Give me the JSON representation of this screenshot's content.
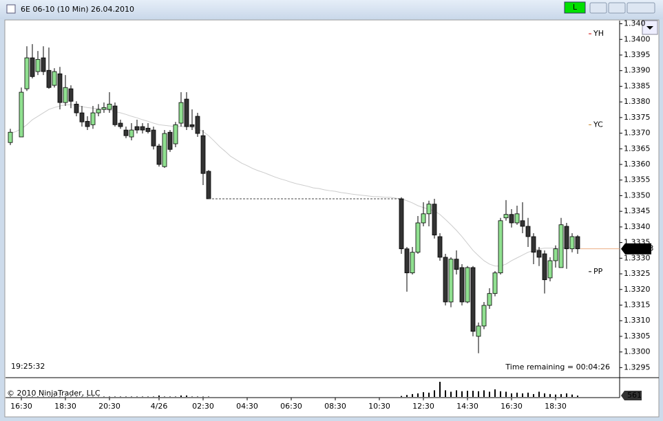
{
  "window": {
    "title": "6E 06-10 (10 Min)  26.04.2010",
    "button": "L"
  },
  "chart_data": {
    "type": "candlestick",
    "clock": "19:25:32",
    "time_remaining": "Time remaining = 00:04:26",
    "copyright": "© 2010 NinjaTrader, LLC",
    "categories": [
      null,
      null,
      "16:30",
      null,
      null,
      null,
      null,
      null,
      null,
      null,
      "18:30",
      null,
      null,
      null,
      null,
      null,
      null,
      null,
      "20:30",
      null,
      null,
      null,
      null,
      null,
      null,
      null,
      null,
      "4/26",
      null,
      null,
      null,
      null,
      null,
      null,
      null,
      "02:30",
      null,
      null,
      null,
      null,
      null,
      null,
      null,
      "04:30",
      null,
      null,
      null,
      null,
      null,
      null,
      null,
      "06:30",
      null,
      null,
      null,
      null,
      null,
      null,
      null,
      "08:30",
      null,
      null,
      null,
      null,
      null,
      null,
      null,
      "10:30",
      null,
      null,
      null,
      null,
      null,
      null,
      null,
      "12:30",
      null,
      null,
      null,
      null,
      null,
      null,
      null,
      "14:30",
      null,
      null,
      null,
      null,
      null,
      null,
      null,
      "16:30",
      null,
      null,
      null,
      null,
      null,
      null,
      null,
      "18:30",
      null,
      null,
      null,
      null
    ],
    "open": [
      1.3367,
      null,
      1.33688,
      1.33842,
      1.33941,
      1.33897,
      1.33941,
      1.33901,
      1.33853,
      1.3389,
      1.33798,
      1.33842,
      1.33793,
      1.33765,
      1.33738,
      1.33727,
      1.33765,
      1.33776,
      1.33776,
      1.33787,
      1.33732,
      1.3371,
      1.33688,
      1.33721,
      1.33721,
      1.33716,
      1.3371,
      1.33659,
      1.33593,
      1.33703,
      1.33666,
      1.33732,
      1.33809,
      1.33727,
      1.33754,
      1.33692,
      1.33578,
      null,
      null,
      null,
      null,
      null,
      null,
      null,
      null,
      null,
      null,
      null,
      null,
      null,
      null,
      null,
      null,
      null,
      null,
      null,
      null,
      null,
      null,
      null,
      null,
      null,
      null,
      null,
      null,
      null,
      null,
      null,
      null,
      null,
      null,
      1.3349,
      1.3333,
      1.33253,
      1.33319,
      1.33413,
      1.33442,
      1.33473,
      1.33369,
      1.33303,
      1.3316,
      1.33297,
      1.3327,
      1.3316,
      1.3327,
      1.3305,
      1.33083,
      1.33149,
      1.33187,
      1.33253,
      1.33429,
      1.3344,
      1.33413,
      1.3342,
      1.33402,
      1.33369,
      1.33325,
      1.33314,
      1.33237,
      1.33292,
      1.3327,
      1.33402,
      1.3333,
      1.33369
    ],
    "high": [
      1.33714,
      null,
      1.33846,
      1.33978,
      1.33985,
      1.33963,
      1.33978,
      1.33974,
      1.33908,
      1.33912,
      1.33886,
      1.33853,
      1.33802,
      1.33787,
      1.33754,
      1.33787,
      1.33793,
      1.33798,
      1.33831,
      1.33798,
      1.33743,
      1.33721,
      1.33732,
      1.33743,
      1.33732,
      1.33732,
      1.33721,
      1.33666,
      1.3371,
      1.3371,
      1.33736,
      1.33831,
      1.33831,
      1.33776,
      1.33765,
      1.3371,
      1.33582,
      null,
      null,
      null,
      null,
      null,
      null,
      null,
      null,
      null,
      null,
      null,
      null,
      null,
      null,
      null,
      null,
      null,
      null,
      null,
      null,
      null,
      null,
      null,
      null,
      null,
      null,
      null,
      null,
      null,
      null,
      null,
      null,
      null,
      null,
      1.33495,
      1.33336,
      1.33336,
      1.33435,
      1.33479,
      1.33484,
      1.3349,
      1.3338,
      1.33314,
      1.33303,
      1.33325,
      1.33281,
      1.33275,
      1.33275,
      1.33094,
      1.3316,
      1.33204,
      1.33259,
      1.33429,
      1.33486,
      1.33457,
      1.33468,
      1.33479,
      1.33429,
      1.3338,
      1.33336,
      1.33325,
      1.33303,
      1.33341,
      1.33429,
      1.33413,
      1.3338,
      1.33374
    ],
    "low": [
      1.33662,
      null,
      1.33688,
      1.33835,
      1.33875,
      1.33886,
      1.33886,
      1.33842,
      1.33846,
      1.33776,
      1.33787,
      1.3378,
      1.33754,
      1.33721,
      1.3371,
      1.33714,
      1.33754,
      1.33765,
      1.33765,
      1.33721,
      1.33714,
      1.33684,
      1.33677,
      1.33699,
      1.33699,
      1.33699,
      1.33648,
      1.33593,
      1.33589,
      1.3364,
      1.33655,
      1.33721,
      1.3371,
      1.3371,
      1.33688,
      1.33534,
      1.3349,
      null,
      null,
      null,
      null,
      null,
      null,
      null,
      null,
      null,
      null,
      null,
      null,
      null,
      null,
      null,
      null,
      null,
      null,
      null,
      null,
      null,
      null,
      null,
      null,
      null,
      null,
      null,
      null,
      null,
      null,
      null,
      null,
      null,
      null,
      1.33314,
      1.33193,
      1.33248,
      1.33314,
      1.33402,
      1.33402,
      1.33363,
      1.33292,
      1.33149,
      1.33143,
      1.33248,
      1.33149,
      1.33156,
      1.3305,
      1.32996,
      1.33073,
      1.33138,
      1.33178,
      1.33248,
      1.3342,
      1.33398,
      1.33407,
      1.3338,
      1.33336,
      1.33281,
      1.33275,
      1.33187,
      1.33226,
      1.3327,
      1.3327,
      1.33266,
      1.33319,
      1.33314
    ],
    "close": [
      1.33703,
      null,
      1.33831,
      1.33941,
      1.33881,
      1.33936,
      1.33897,
      1.33846,
      1.33897,
      1.33798,
      1.33846,
      1.33802,
      1.33765,
      1.33736,
      1.33721,
      1.33765,
      1.33776,
      1.33782,
      1.33793,
      1.33727,
      1.33721,
      1.33692,
      1.3371,
      1.3371,
      1.3371,
      1.33705,
      1.33659,
      1.336,
      1.33699,
      1.33648,
      1.33727,
      1.33798,
      1.33721,
      1.33721,
      1.33699,
      1.33571,
      1.3349,
      null,
      null,
      null,
      null,
      null,
      null,
      null,
      null,
      null,
      null,
      null,
      null,
      null,
      null,
      null,
      null,
      null,
      null,
      null,
      null,
      null,
      null,
      null,
      null,
      null,
      null,
      null,
      null,
      null,
      null,
      null,
      null,
      null,
      null,
      1.3333,
      1.33253,
      1.33319,
      1.33413,
      1.33442,
      1.33473,
      1.33374,
      1.33303,
      1.3316,
      1.33297,
      1.33264,
      1.3316,
      1.3327,
      1.33066,
      1.33083,
      1.33149,
      1.33187,
      1.33253,
      1.3342,
      1.3344,
      1.33413,
      1.33442,
      1.33402,
      1.33369,
      1.33319,
      1.33303,
      1.33231,
      1.33292,
      1.3333,
      1.33407,
      1.3333,
      1.33369,
      1.3333
    ],
    "up_color": "#90e090",
    "down_color": "#333333",
    "ma": {
      "color": "#cccccc",
      "values": [
        1.33699,
        1.33705,
        1.33714,
        1.33727,
        1.33743,
        1.33754,
        1.33765,
        1.33776,
        1.33782,
        1.33787,
        1.33791,
        1.33791,
        1.33789,
        1.33785,
        1.33782,
        1.3378,
        1.33778,
        1.33776,
        1.33774,
        1.33769,
        1.33765,
        1.3376,
        1.33754,
        1.33749,
        1.33743,
        1.33738,
        1.33732,
        1.33727,
        1.33725,
        1.33723,
        1.33721,
        1.33721,
        1.33721,
        1.33719,
        1.33714,
        1.33705,
        1.33692,
        1.33675,
        1.33657,
        1.33642,
        1.33626,
        1.33615,
        1.33604,
        1.33596,
        1.33587,
        1.3358,
        1.33574,
        1.33567,
        1.3356,
        1.33554,
        1.33549,
        1.33543,
        1.33538,
        1.33534,
        1.3353,
        1.33525,
        1.33523,
        1.33519,
        1.33516,
        1.33514,
        1.3351,
        1.33508,
        1.33505,
        1.33503,
        1.33501,
        1.33499,
        1.33497,
        1.33497,
        1.33495,
        1.33495,
        1.33492,
        1.3349,
        1.33484,
        1.33477,
        1.33468,
        1.33462,
        1.33457,
        1.33451,
        1.3344,
        1.33424,
        1.33407,
        1.33389,
        1.33369,
        1.33347,
        1.33325,
        1.33308,
        1.33292,
        1.33281,
        1.33275,
        1.33275,
        1.33281,
        1.33292,
        1.33301,
        1.3331,
        1.33319,
        1.33325,
        1.3333,
        1.33332,
        1.33332,
        1.33332,
        1.33332,
        1.33334,
        1.33336,
        1.33336
      ]
    },
    "volume": {
      "color": "#000000",
      "ylim": [
        0,
        7000
      ],
      "values": [
        150,
        null,
        150,
        150,
        150,
        150,
        150,
        150,
        150,
        150,
        150,
        150,
        150,
        150,
        150,
        150,
        150,
        150,
        150,
        150,
        150,
        150,
        150,
        150,
        150,
        150,
        150,
        600,
        150,
        150,
        150,
        600,
        600,
        150,
        150,
        150,
        150,
        null,
        null,
        null,
        null,
        null,
        null,
        null,
        null,
        null,
        null,
        null,
        null,
        null,
        null,
        null,
        null,
        null,
        null,
        null,
        null,
        null,
        null,
        null,
        null,
        null,
        null,
        null,
        null,
        null,
        null,
        null,
        null,
        null,
        null,
        400,
        800,
        1200,
        1500,
        2000,
        1800,
        2800,
        6400,
        2800,
        2200,
        2800,
        2400,
        2600,
        2600,
        2400,
        2800,
        2200,
        3200,
        2400,
        2200,
        1500,
        1800,
        1500,
        1800,
        1200,
        2200,
        1500,
        1200,
        1000,
        1200,
        1500,
        1000,
        561
      ]
    },
    "levels": [
      {
        "label": "YH",
        "value": 1.34018,
        "color": "#cc0000"
      },
      {
        "label": "YC",
        "value": 1.33727,
        "color": "#c88020"
      },
      {
        "label": "PP",
        "value": 1.33257,
        "color": "#000000"
      }
    ],
    "ylim": [
      1.3292,
      1.3406
    ],
    "yticks": [
      1.3295,
      {
        "value": 1.33,
        "label": "1.3300"
      },
      1.3305,
      {
        "value": 1.331,
        "label": "1.3310"
      },
      1.3315,
      {
        "value": 1.332,
        "label": "1.3320"
      },
      1.3325,
      {
        "value": 1.333,
        "label": "1.3330"
      },
      1.3335,
      {
        "value": 1.334,
        "label": "1.3340"
      },
      1.3345,
      {
        "value": 1.335,
        "label": "1.3350"
      },
      1.3355,
      {
        "value": 1.336,
        "label": "1.3360"
      },
      1.3365,
      {
        "value": 1.337,
        "label": "1.3370"
      },
      1.3375,
      {
        "value": 1.338,
        "label": "1.3380"
      },
      1.3385,
      {
        "value": 1.339,
        "label": "1.3390"
      },
      1.3395,
      {
        "value": 1.34,
        "label": "1.3400"
      },
      {
        "value": 1.3405,
        "label": "1.340"
      }
    ]
  }
}
